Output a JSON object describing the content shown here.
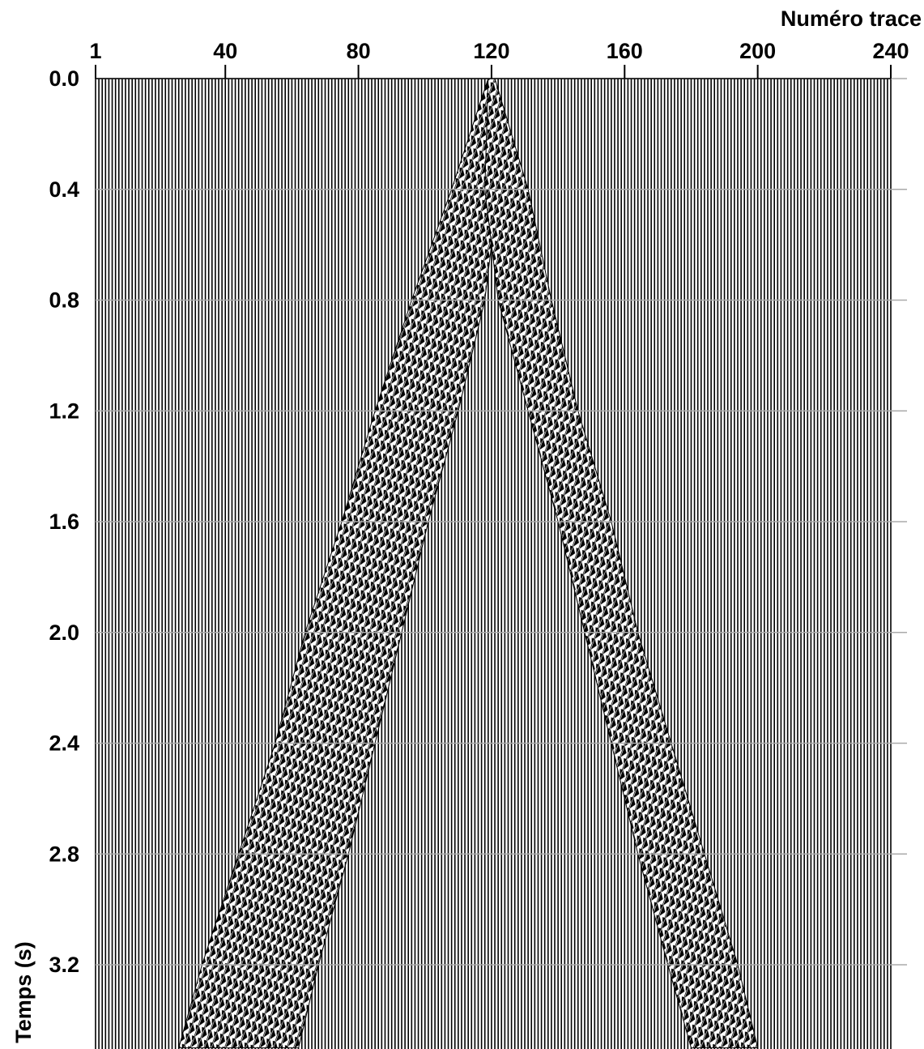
{
  "chart_data": {
    "type": "seismic",
    "x_label": "Numéro trace",
    "y_label": "Temps (s)",
    "xlim": [
      1,
      240
    ],
    "xticks": [
      1,
      40,
      80,
      120,
      160,
      200,
      240
    ],
    "ylim": [
      0,
      3.5
    ],
    "yticks": [
      {
        "value": 0,
        "label": "0.0"
      },
      0.4,
      0.8,
      1.2,
      1.6,
      {
        "value": 2,
        "label": "2.0"
      },
      2.4,
      2.8,
      3.2
    ],
    "grid": true,
    "events": [
      {
        "t": [
          0,
          0.4,
          0.8,
          1.2,
          1.6,
          2.0,
          2.4,
          2.8,
          3.2,
          3.5
        ],
        "x_left": [
          119,
          108,
          96,
          85,
          75,
          64,
          55,
          44,
          33,
          26
        ],
        "x_right": [
          121,
          122,
          118,
          110,
          101,
          93,
          85,
          77,
          68,
          62
        ]
      },
      {
        "t": [
          0,
          0.4,
          0.8,
          1.2,
          1.6,
          2.0,
          2.4,
          2.8,
          3.2,
          3.5
        ],
        "x_left": [
          119,
          118,
          122,
          131,
          140,
          148,
          156,
          164,
          173,
          180
        ],
        "x_right": [
          121,
          131,
          138,
          146,
          156,
          164,
          174,
          184,
          194,
          200
        ]
      }
    ]
  }
}
